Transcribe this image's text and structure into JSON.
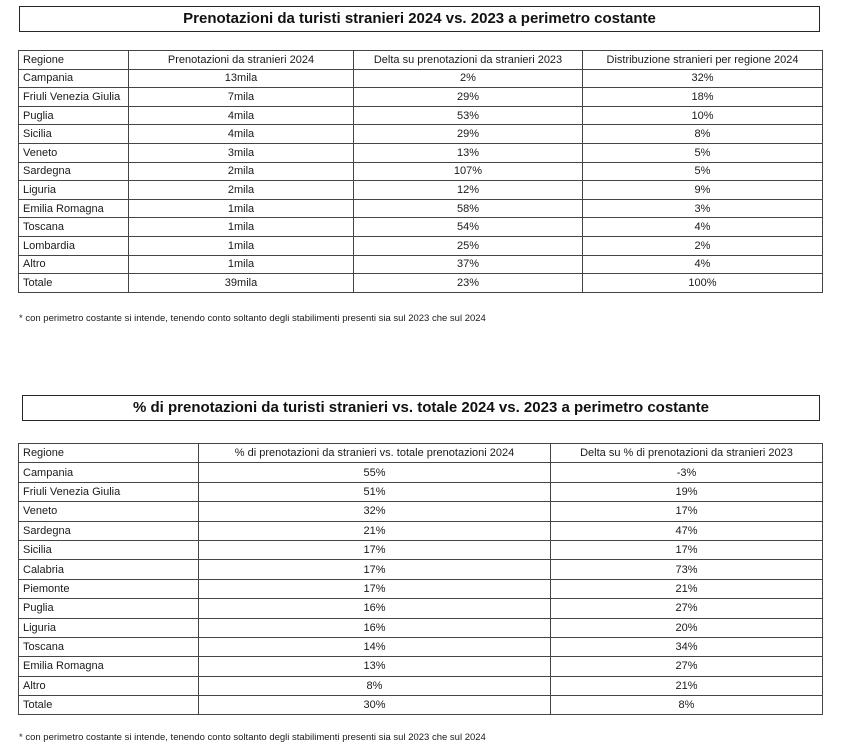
{
  "table1": {
    "title": "Prenotazioni da turisti stranieri 2024 vs. 2023 a perimetro costante",
    "columns": [
      "Regione",
      "Prenotazioni da stranieri 2024",
      "Delta su prenotazioni da stranieri 2023",
      "Distribuzione stranieri per regione 2024"
    ],
    "rows": [
      [
        "Campania",
        "13mila",
        "2%",
        "32%"
      ],
      [
        "Friuli Venezia Giulia",
        "7mila",
        "29%",
        "18%"
      ],
      [
        "Puglia",
        "4mila",
        "53%",
        "10%"
      ],
      [
        "Sicilia",
        "4mila",
        "29%",
        "8%"
      ],
      [
        "Veneto",
        "3mila",
        "13%",
        "5%"
      ],
      [
        "Sardegna",
        "2mila",
        "107%",
        "5%"
      ],
      [
        "Liguria",
        "2mila",
        "12%",
        "9%"
      ],
      [
        "Emilia Romagna",
        "1mila",
        "58%",
        "3%"
      ],
      [
        "Toscana",
        "1mila",
        "54%",
        "4%"
      ],
      [
        "Lombardia",
        "1mila",
        "25%",
        "2%"
      ],
      [
        "Altro",
        "1mila",
        "37%",
        "4%"
      ],
      [
        "Totale",
        "39mila",
        "23%",
        "100%"
      ]
    ],
    "footnote": "* con perimetro costante si intende, tenendo conto soltanto degli stabilimenti presenti sia sul 2023 che sul 2024"
  },
  "table2": {
    "title": "% di prenotazioni da turisti stranieri vs. totale 2024 vs. 2023 a perimetro costante",
    "columns": [
      "Regione",
      "% di prenotazioni da stranieri vs. totale prenotazioni 2024",
      "Delta su % di prenotazioni da stranieri 2023"
    ],
    "rows": [
      [
        "Campania",
        "55%",
        "-3%"
      ],
      [
        "Friuli Venezia Giulia",
        "51%",
        "19%"
      ],
      [
        "Veneto",
        "32%",
        "17%"
      ],
      [
        "Sardegna",
        "21%",
        "47%"
      ],
      [
        "Sicilia",
        "17%",
        "17%"
      ],
      [
        "Calabria",
        "17%",
        "73%"
      ],
      [
        "Piemonte",
        "17%",
        "21%"
      ],
      [
        "Puglia",
        "16%",
        "27%"
      ],
      [
        "Liguria",
        "16%",
        "20%"
      ],
      [
        "Toscana",
        "14%",
        "34%"
      ],
      [
        "Emilia Romagna",
        "13%",
        "27%"
      ],
      [
        "Altro",
        "8%",
        "21%"
      ],
      [
        "Totale",
        "30%",
        "8%"
      ]
    ],
    "footnote": "* con perimetro costante si intende, tenendo conto soltanto degli stabilimenti presenti sia sul 2023 che sul 2024"
  }
}
